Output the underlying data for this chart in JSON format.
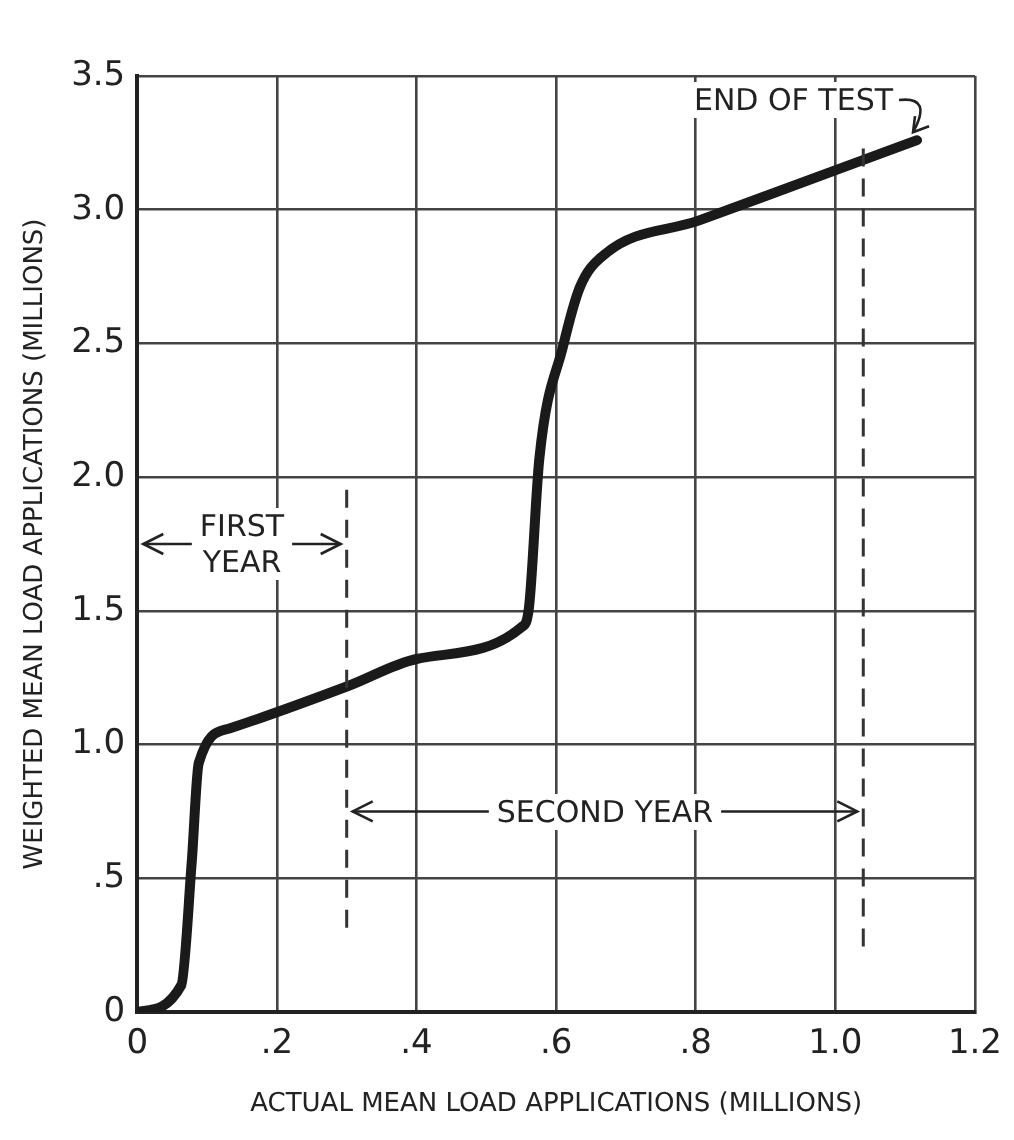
{
  "chart_data": {
    "type": "line",
    "xlabel": "ACTUAL MEAN LOAD APPLICATIONS (MILLIONS)",
    "ylabel": "WEIGHTED MEAN LOAD APPLICATIONS (MILLIONS)",
    "series": [
      {
        "color": "#1a1a1a",
        "x": [
          0,
          0.063,
          0.078,
          0.088,
          0.132,
          0.303,
          0.4,
          0.551,
          0.561,
          0.576,
          0.61,
          0.634,
          0.668,
          0.805,
          1.117
        ],
        "values": [
          0,
          0.1,
          0.56,
          0.93,
          1.06,
          1.22,
          1.32,
          1.44,
          1.51,
          2.07,
          2.49,
          2.71,
          2.83,
          2.96,
          3.26
        ]
      }
    ],
    "xlim": [
      0,
      1.2
    ],
    "xticks": [
      0,
      {
        "value": 0.2,
        "label": ".2"
      },
      {
        "value": 0.4,
        "label": ".4"
      },
      {
        "value": 0.6,
        "label": ".6"
      },
      {
        "value": 0.8,
        "label": ".8"
      },
      {
        "value": 1.0,
        "label": "1.0"
      },
      {
        "value": 1.2,
        "label": "1.2"
      }
    ],
    "ylim": [
      0,
      3.5
    ],
    "yticks": [
      0,
      {
        "value": 0.5,
        "label": ".5"
      },
      {
        "value": 1.0,
        "label": "1.0"
      },
      1.5,
      {
        "value": 2.0,
        "label": "2.0"
      },
      2.5,
      {
        "value": 3.0,
        "label": "3.0"
      },
      3.5
    ],
    "grid": true,
    "marker": "none",
    "line_style": "solid",
    "ref_lines": [
      {
        "axis": "x",
        "value": 0.3,
        "color": "#333333",
        "line_style": "dashed"
      },
      {
        "axis": "x",
        "value": 1.04,
        "color": "#333333",
        "line_style": "dashed"
      }
    ],
    "annotations": [
      {
        "text": "FIRST\nYEAR",
        "x": 0.3,
        "y": 1.75
      },
      {
        "text": "SECOND YEAR",
        "x": 1.04,
        "y": 0.75
      },
      {
        "text": "END OF TEST",
        "x": 1.117,
        "y": 3.26
      }
    ]
  }
}
